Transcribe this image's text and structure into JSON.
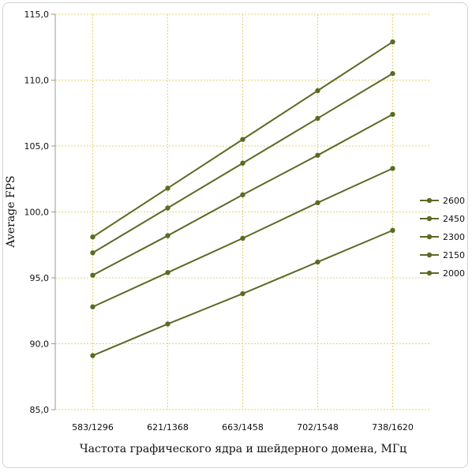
{
  "chart_data": {
    "type": "line",
    "title": "",
    "xlabel": "Частота графического ядра и шейдерного домена, МГц",
    "ylabel": "Average FPS",
    "categories": [
      "583/1296",
      "621/1368",
      "663/1458",
      "702/1548",
      "738/1620"
    ],
    "ylim": [
      85,
      115
    ],
    "yticks": [
      "85,0",
      "90,0",
      "95,0",
      "100,0",
      "105,0",
      "110,0",
      "115,0"
    ],
    "grid": "horizontal and vertical dotted",
    "legend_position": "right",
    "line_color": "#5a6b24",
    "grid_color": "#e6d070",
    "series": [
      {
        "name": "2600",
        "values": [
          98.1,
          101.8,
          105.5,
          109.2,
          112.9
        ]
      },
      {
        "name": "2450",
        "values": [
          96.9,
          100.3,
          103.7,
          107.1,
          110.5
        ]
      },
      {
        "name": "2300",
        "values": [
          95.2,
          98.2,
          101.3,
          104.3,
          107.4
        ]
      },
      {
        "name": "2150",
        "values": [
          92.8,
          95.4,
          98.0,
          100.7,
          103.3
        ]
      },
      {
        "name": "2000",
        "values": [
          89.1,
          91.5,
          93.8,
          96.2,
          98.6
        ]
      }
    ]
  }
}
